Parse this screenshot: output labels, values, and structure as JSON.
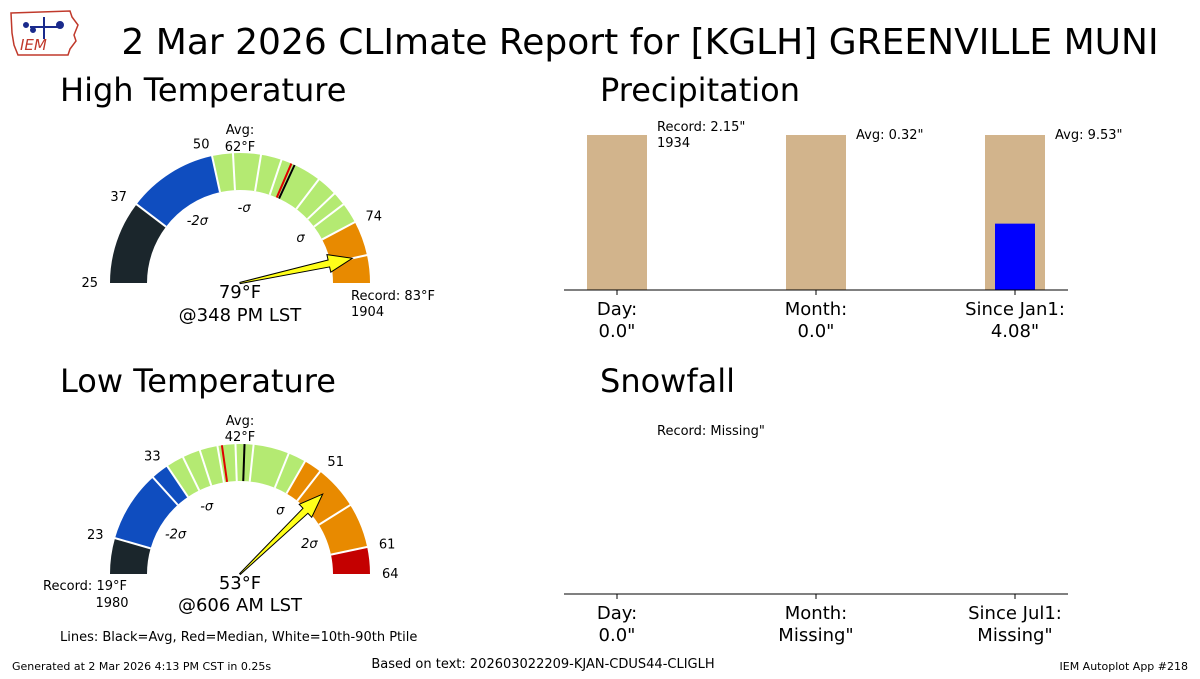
{
  "title": "2 Mar 2026 CLImate Report for [KGLH] GREENVILLE MUNI",
  "logo_text": "IEM",
  "footer": {
    "generated": "Generated at 2 Mar 2026 4:13 PM CST in 0.25s",
    "based_on": "Based on text: 202603022209-KJAN-CDUS44-CLIGLH",
    "app": "IEM Autoplot App #218",
    "legend_note": "Lines: Black=Avg, Red=Median, White=10th-90th Ptile"
  },
  "colors": {
    "dark": "#1b262c",
    "blue": "#0f4dbf",
    "green": "#b4ea72",
    "orange": "#e88a00",
    "red": "#c40000",
    "needle": "#ffff1a",
    "precip_avg": "#d2b48c",
    "precip_obs": "#0000ff"
  },
  "chart_data": [
    {
      "type": "gauge",
      "title": "High Temperature",
      "range": [
        25,
        83
      ],
      "segments": [
        {
          "from": 25,
          "to": 37,
          "color": "dark"
        },
        {
          "from": 37,
          "to": 50,
          "color": "blue"
        },
        {
          "from": 50,
          "to": 74,
          "color": "green"
        },
        {
          "from": 74,
          "to": 79,
          "color": "orange"
        },
        {
          "from": 79,
          "to": 83,
          "color": "orange"
        }
      ],
      "white_lines": [
        37,
        50,
        53,
        57,
        60,
        62,
        66,
        69,
        71,
        74,
        79
      ],
      "avg": 62,
      "median": 61.5,
      "tick_labels": [
        {
          "v": 25,
          "t": "25"
        },
        {
          "v": 37,
          "t": "37"
        },
        {
          "v": 50,
          "t": "50"
        },
        {
          "v": 74,
          "t": "74"
        }
      ],
      "sigma_labels": [
        {
          "v": 43,
          "t": "-2σ"
        },
        {
          "v": 55,
          "t": "-σ"
        },
        {
          "v": 71,
          "t": "σ"
        }
      ],
      "avg_label": "Avg:",
      "avg_value": "62°F",
      "observed": 79,
      "observed_label": "79°F",
      "observed_time": "@348 PM LST",
      "record": "Record: 83°F",
      "record_year": "1904"
    },
    {
      "type": "gauge",
      "title": "Low Temperature",
      "range": [
        19,
        64
      ],
      "segments": [
        {
          "from": 19,
          "to": 23,
          "color": "dark"
        },
        {
          "from": 23,
          "to": 33,
          "color": "blue"
        },
        {
          "from": 33,
          "to": 49,
          "color": "green"
        },
        {
          "from": 49,
          "to": 61,
          "color": "orange"
        },
        {
          "from": 61,
          "to": 64,
          "color": "red"
        }
      ],
      "white_lines": [
        23,
        31,
        33,
        35,
        37,
        39,
        41,
        43,
        47,
        49,
        51,
        56,
        61
      ],
      "avg": 42,
      "median": 39.5,
      "tick_labels": [
        {
          "v": 23,
          "t": "23"
        },
        {
          "v": 33,
          "t": "33"
        },
        {
          "v": 51,
          "t": "51"
        },
        {
          "v": 61,
          "t": "61"
        },
        {
          "v": 64,
          "t": "64"
        }
      ],
      "sigma_labels": [
        {
          "v": 27,
          "t": "-2σ"
        },
        {
          "v": 35,
          "t": "-σ"
        },
        {
          "v": 49.5,
          "t": "σ"
        },
        {
          "v": 58,
          "t": "2σ"
        }
      ],
      "avg_label": "Avg:",
      "avg_value": "42°F",
      "observed": 53,
      "observed_label": "53°F",
      "observed_time": "@606 AM LST",
      "record": "Record: 19°F",
      "record_year": "1980"
    },
    {
      "type": "bar",
      "title": "Precipitation",
      "categories": [
        "Day:",
        "Month:",
        "Since Jan1:"
      ],
      "observed_text": [
        "0.0\"",
        "0.0\"",
        "4.08\""
      ],
      "observed": [
        0.0,
        0.0,
        4.08
      ],
      "reference": [
        2.15,
        0.32,
        9.53
      ],
      "reference_labels": [
        "Record: 2.15\"",
        "Avg: 0.32\"",
        "Avg: 9.53\""
      ],
      "reference_sub": [
        "1934",
        "",
        ""
      ]
    },
    {
      "type": "bar",
      "title": "Snowfall",
      "categories": [
        "Day:",
        "Month:",
        "Since Jul1:"
      ],
      "observed_text": [
        "0.0\"",
        "Missing\"",
        "Missing\""
      ],
      "record_label": "Record: Missing\""
    }
  ]
}
